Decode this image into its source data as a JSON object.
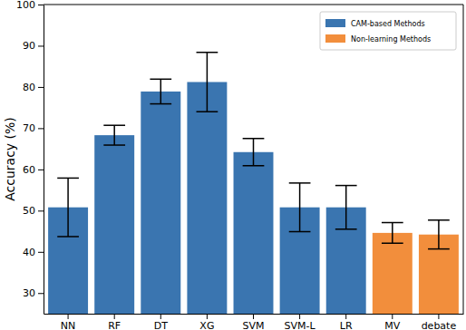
{
  "chart_data": {
    "type": "bar",
    "y_label": "Accuracy (%)",
    "categories": [
      "NN",
      "RF",
      "DT",
      "XG",
      "SVM",
      "SVM-L",
      "LR",
      "MV",
      "debate"
    ],
    "series": [
      {
        "name": "CAM-based Methods",
        "color": "#3a75b0",
        "values": [
          50.8,
          68.3,
          78.9,
          81.2,
          64.2,
          50.8,
          50.8,
          null,
          null
        ],
        "errors": [
          7.1,
          2.4,
          3.0,
          7.2,
          3.3,
          5.9,
          5.3,
          null,
          null
        ]
      },
      {
        "name": "Non-learning Methods",
        "color": "#f28e3c",
        "values": [
          null,
          null,
          null,
          null,
          null,
          null,
          null,
          44.6,
          44.2
        ],
        "errors": [
          null,
          null,
          null,
          null,
          null,
          null,
          null,
          2.5,
          3.5
        ]
      }
    ],
    "ylim": [
      25,
      100
    ],
    "yticks": [
      30,
      40,
      50,
      60,
      70,
      80,
      90,
      100
    ],
    "legend": "upper right"
  }
}
